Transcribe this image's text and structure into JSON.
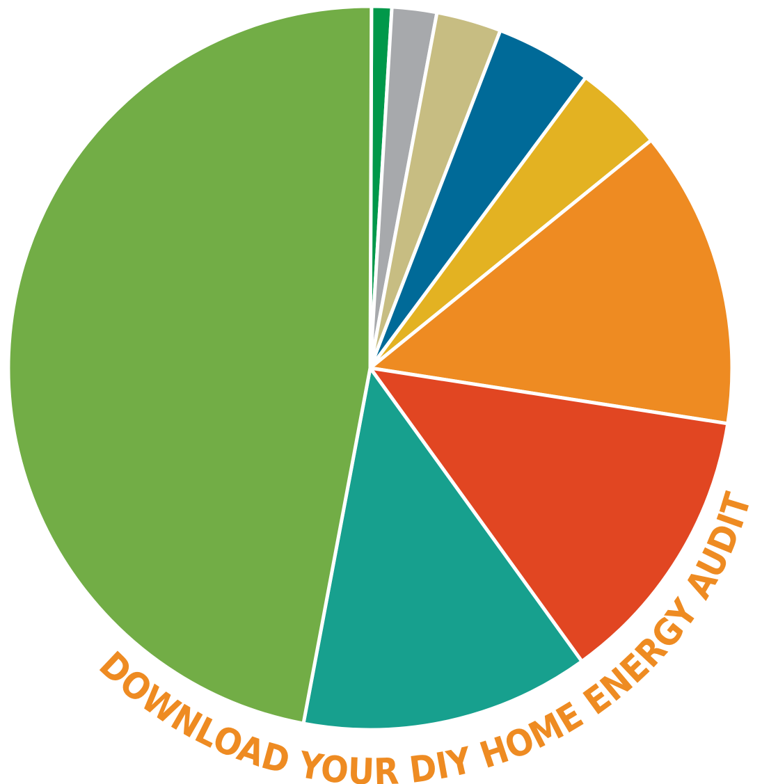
{
  "chart_data": {
    "type": "pie",
    "title": "",
    "legend": "none",
    "slices": [
      {
        "value": 0.9,
        "color": "#00984a"
      },
      {
        "value": 2.0,
        "color": "#a7a9ac"
      },
      {
        "value": 2.9,
        "color": "#c7bd82"
      },
      {
        "value": 4.3,
        "color": "#006a98"
      },
      {
        "value": 4.0,
        "color": "#e3b222"
      },
      {
        "value": 13.3,
        "color": "#ee8b22"
      },
      {
        "value": 12.6,
        "color": "#e14622"
      },
      {
        "value": 12.9,
        "color": "#17a08e"
      },
      {
        "value": 47.1,
        "color": "#72ad46"
      }
    ]
  },
  "banner": {
    "text": "DOWNLOAD YOUR DIY HOME ENERGY AUDIT CHECKLIST TODAY!",
    "color": "#ee8b22"
  }
}
